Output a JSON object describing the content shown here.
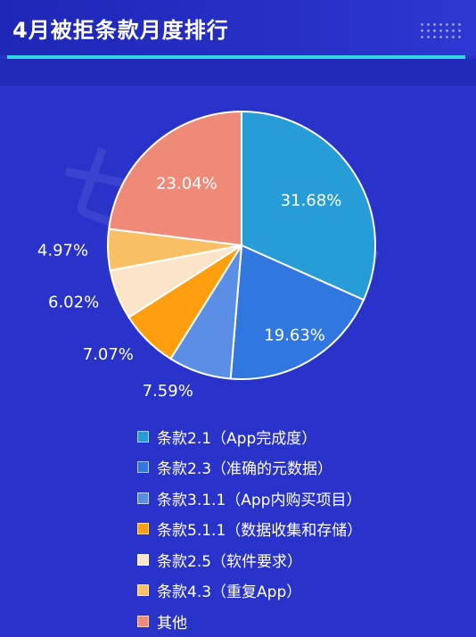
{
  "header": {
    "title": "4月被拒条款月度排行"
  },
  "watermark": "七麦数据",
  "chart_data": {
    "type": "pie",
    "title": "4月被拒条款月度排行",
    "slices": [
      {
        "name": "条款2.1（App完成度）",
        "value": 31.68,
        "label": "31.68%",
        "color": "#269dd6"
      },
      {
        "name": "条款2.3（准确的元数据）",
        "value": 19.63,
        "label": "19.63%",
        "color": "#3077e0"
      },
      {
        "name": "条款3.1.1（App内购买项目）",
        "value": 7.59,
        "label": "7.59%",
        "color": "#5b8fe6"
      },
      {
        "name": "条款5.1.1（数据收集和存储）",
        "value": 7.07,
        "label": "7.07%",
        "color": "#ff9f0f"
      },
      {
        "name": "条款2.5（软件要求）",
        "value": 6.02,
        "label": "6.02%",
        "color": "#fbe4c8"
      },
      {
        "name": "条款4.3（重复App）",
        "value": 4.97,
        "label": "4.97%",
        "color": "#f9bf65"
      },
      {
        "name": "其他",
        "value": 23.04,
        "label": "23.04%",
        "color": "#ef8a79"
      }
    ],
    "legend_position": "bottom"
  }
}
